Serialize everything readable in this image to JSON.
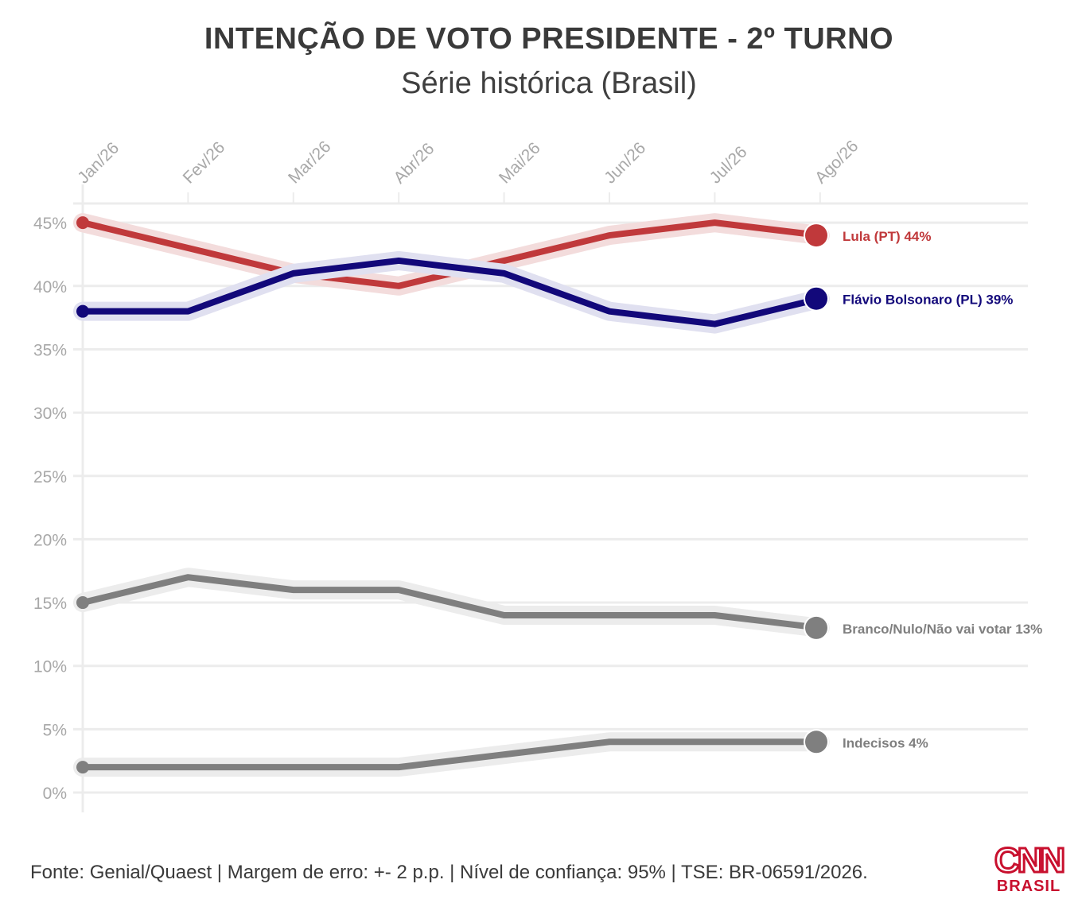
{
  "header": {
    "title": "INTENÇÃO DE VOTO PRESIDENTE - 2º TURNO",
    "subtitle": "Série histórica (Brasil)"
  },
  "footer": {
    "source": "Fonte: Genial/Quaest | Margem de erro: +- 2 p.p. | Nível de confiança: 95% | TSE: BR-06591/2026.",
    "logo_top": "CNN",
    "logo_bottom": "BRASIL"
  },
  "colors": {
    "lula": "#c0393b",
    "flavio": "#12087a",
    "branco": "#7f7f7f",
    "indecisos": "#7f7f7f",
    "grid": "#ececec",
    "tick_label": "#a8a8a8",
    "logo": "#c8102e"
  },
  "chart_data": {
    "type": "line",
    "categories": [
      "Jan/26",
      "Fev/26",
      "Mar/26",
      "Abr/26",
      "Mai/26",
      "Jun/26",
      "Jul/26",
      "Ago/26"
    ],
    "y_ticks": [
      "0%",
      "5%",
      "10%",
      "15%",
      "20%",
      "25%",
      "30%",
      "35%",
      "40%",
      "45%"
    ],
    "ylim": [
      0,
      45
    ],
    "grid": true,
    "series": [
      {
        "name": "Lula (PT)",
        "end_label": "Lula (PT) 44%",
        "color": "#c0393b",
        "halo": "#f3dcdc",
        "values": [
          45,
          43,
          41,
          40,
          42,
          44,
          45,
          44
        ]
      },
      {
        "name": "Flávio Bolsonaro (PL)",
        "end_label": "Flávio Bolsonaro (PL) 39%",
        "color": "#12087a",
        "halo": "#e0e0f0",
        "values": [
          38,
          38,
          41,
          42,
          41,
          38,
          37,
          39
        ]
      },
      {
        "name": "Branco/Nulo/Não vai votar",
        "end_label": "Branco/Nulo/Não vai votar 13%",
        "color": "#7f7f7f",
        "halo": "#ececec",
        "values": [
          15,
          17,
          16,
          16,
          14,
          14,
          14,
          13
        ]
      },
      {
        "name": "Indecisos",
        "end_label": "Indecisos 4%",
        "color": "#7f7f7f",
        "halo": "#ececec",
        "values": [
          2,
          2,
          2,
          2,
          3,
          4,
          4,
          4
        ]
      }
    ]
  }
}
